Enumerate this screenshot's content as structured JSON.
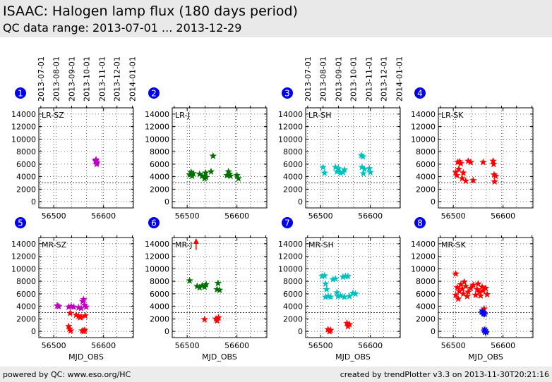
{
  "header": {
    "title": "ISAAC: Halogen lamp flux (180 days period)",
    "subtitle": "QC data range: 2013-07-01 ... 2013-12-29"
  },
  "footer": {
    "left": "powered by QC: www.eso.org/HC",
    "right": "created by trendPlotter v3.3 on 2013-11-30T20:21:16"
  },
  "colors": {
    "magenta": "#c000c0",
    "green": "#007000",
    "cyan": "#00c0c0",
    "red": "#ff0000",
    "blue": "#0000ff",
    "badge": "#0000ee"
  },
  "date_ticks": [
    "2013-07-01",
    "2013-08-01",
    "2013-09-01",
    "2013-10-01",
    "2013-11-01",
    "2013-12-01",
    "2014-01-01"
  ],
  "chart_data": [
    {
      "type": "scatter",
      "index": "1",
      "label": "LR-SZ",
      "xlabel": "",
      "xlim": [
        56470,
        56660
      ],
      "ylim": [
        -1000,
        15000
      ],
      "xticks": [
        56500,
        56600
      ],
      "yticks": [
        0,
        2000,
        4000,
        6000,
        8000,
        10000,
        12000,
        14000
      ],
      "threshold": 3000,
      "grid": true,
      "date_axis_top": true,
      "series": [
        {
          "color": "magenta",
          "marker": "star",
          "points": [
            [
              56585,
              6700
            ],
            [
              56585,
              6400
            ],
            [
              56587,
              6200
            ],
            [
              56586,
              6000
            ],
            [
              56584,
              6550
            ]
          ]
        }
      ]
    },
    {
      "type": "scatter",
      "index": "2",
      "label": "LR-J",
      "xlabel": "",
      "xlim": [
        56470,
        56660
      ],
      "ylim": [
        -1000,
        15000
      ],
      "xticks": [
        56500,
        56600
      ],
      "yticks": [
        0,
        2000,
        4000,
        6000,
        8000,
        10000,
        12000,
        14000
      ],
      "threshold": 3000,
      "grid": true,
      "date_axis_top": false,
      "series": [
        {
          "color": "green",
          "marker": "star",
          "points": [
            [
              56505,
              4300
            ],
            [
              56508,
              4700
            ],
            [
              56510,
              4100
            ],
            [
              56512,
              4500
            ],
            [
              56525,
              4400
            ],
            [
              56530,
              4100
            ],
            [
              56535,
              3700
            ],
            [
              56537,
              4600
            ],
            [
              56538,
              3900
            ],
            [
              56548,
              4800
            ],
            [
              56552,
              7300
            ],
            [
              56580,
              4200
            ],
            [
              56583,
              4800
            ],
            [
              56585,
              4400
            ],
            [
              56587,
              4100
            ],
            [
              56600,
              4200
            ],
            [
              56603,
              3700
            ]
          ]
        }
      ]
    },
    {
      "type": "scatter",
      "index": "3",
      "label": "LR-SH",
      "xlabel": "",
      "xlim": [
        56470,
        56660
      ],
      "ylim": [
        -1000,
        15000
      ],
      "xticks": [
        56500,
        56600
      ],
      "yticks": [
        0,
        2000,
        4000,
        6000,
        8000,
        10000,
        12000,
        14000
      ],
      "threshold": 3000,
      "grid": true,
      "date_axis_top": true,
      "series": [
        {
          "color": "cyan",
          "marker": "star",
          "points": [
            [
              56505,
              5500
            ],
            [
              56508,
              4600
            ],
            [
              56530,
              5500
            ],
            [
              56533,
              4800
            ],
            [
              56536,
              5300
            ],
            [
              56540,
              4600
            ],
            [
              56545,
              4700
            ],
            [
              56548,
              5100
            ],
            [
              56582,
              7400
            ],
            [
              56585,
              7200
            ],
            [
              56583,
              5500
            ],
            [
              56586,
              4500
            ],
            [
              56588,
              5200
            ],
            [
              56598,
              5300
            ],
            [
              56600,
              4700
            ]
          ]
        }
      ]
    },
    {
      "type": "scatter",
      "index": "4",
      "label": "LR-SK",
      "xlabel": "",
      "xlim": [
        56470,
        56660
      ],
      "ylim": [
        -1000,
        15000
      ],
      "xticks": [
        56500,
        56600
      ],
      "yticks": [
        0,
        2000,
        4000,
        6000,
        8000,
        10000,
        12000,
        14000
      ],
      "threshold": 3000,
      "grid": true,
      "date_axis_top": false,
      "series": [
        {
          "color": "red",
          "marker": "star",
          "points": [
            [
              56505,
              4700
            ],
            [
              56507,
              4200
            ],
            [
              56509,
              6300
            ],
            [
              56511,
              5200
            ],
            [
              56513,
              6400
            ],
            [
              56515,
              6100
            ],
            [
              56518,
              3700
            ],
            [
              56520,
              4600
            ],
            [
              56525,
              3300
            ],
            [
              56530,
              6500
            ],
            [
              56535,
              6300
            ],
            [
              56540,
              3400
            ],
            [
              56560,
              6300
            ],
            [
              56580,
              6500
            ],
            [
              56581,
              6000
            ],
            [
              56582,
              4300
            ],
            [
              56583,
              3200
            ],
            [
              56585,
              4100
            ]
          ]
        }
      ]
    },
    {
      "type": "scatter",
      "index": "5",
      "label": "MR-SZ",
      "xlabel": "MJD_OBS",
      "xlim": [
        56470,
        56660
      ],
      "ylim": [
        -1000,
        15000
      ],
      "xticks": [
        56500,
        56600
      ],
      "yticks": [
        0,
        2000,
        4000,
        6000,
        8000,
        10000,
        12000,
        14000
      ],
      "threshold": 3000,
      "grid": true,
      "date_axis_top": false,
      "series": [
        {
          "color": "magenta",
          "marker": "star",
          "points": [
            [
              56507,
              4100
            ],
            [
              56510,
              4000
            ],
            [
              56530,
              3900
            ],
            [
              56535,
              4000
            ],
            [
              56540,
              3900
            ],
            [
              56550,
              3800
            ],
            [
              56555,
              3700
            ],
            [
              56558,
              4800
            ],
            [
              56560,
              5100
            ],
            [
              56562,
              4200
            ],
            [
              56565,
              3900
            ]
          ]
        },
        {
          "color": "red",
          "marker": "star",
          "points": [
            [
              56530,
              800
            ],
            [
              56532,
              400
            ],
            [
              56534,
              100
            ],
            [
              56533,
              2900
            ],
            [
              56545,
              2600
            ],
            [
              56550,
              2400
            ],
            [
              56553,
              2200
            ],
            [
              56555,
              2300
            ],
            [
              56557,
              100
            ],
            [
              56560,
              0
            ],
            [
              56562,
              200
            ],
            [
              56563,
              2500
            ]
          ]
        }
      ]
    },
    {
      "type": "scatter",
      "index": "6",
      "label": "MR-J",
      "xlabel": "MJD_OBS",
      "xlim": [
        56470,
        56660
      ],
      "ylim": [
        -1000,
        15000
      ],
      "xticks": [
        56500,
        56600
      ],
      "yticks": [
        0,
        2000,
        4000,
        6000,
        8000,
        10000,
        12000,
        14000
      ],
      "threshold": 3000,
      "grid": true,
      "date_axis_top": false,
      "outlier": {
        "x": 56518,
        "y": 13000,
        "color": "red"
      },
      "series": [
        {
          "color": "green",
          "marker": "star",
          "points": [
            [
              56505,
              8100
            ],
            [
              56520,
              7200
            ],
            [
              56525,
              7000
            ],
            [
              56530,
              7300
            ],
            [
              56535,
              7100
            ],
            [
              56538,
              7500
            ],
            [
              56560,
              6700
            ],
            [
              56562,
              7700
            ],
            [
              56565,
              6600
            ]
          ]
        },
        {
          "color": "red",
          "marker": "star",
          "points": [
            [
              56535,
              1900
            ],
            [
              56558,
              2000
            ],
            [
              56560,
              1700
            ],
            [
              56563,
              2200
            ]
          ]
        }
      ]
    },
    {
      "type": "scatter",
      "index": "7",
      "label": "MR-SH",
      "xlabel": "MJD_OBS",
      "xlim": [
        56470,
        56660
      ],
      "ylim": [
        -1000,
        15000
      ],
      "xticks": [
        56500,
        56600
      ],
      "yticks": [
        0,
        2000,
        4000,
        6000,
        8000,
        10000,
        12000,
        14000
      ],
      "threshold": 3000,
      "grid": true,
      "date_axis_top": false,
      "series": [
        {
          "color": "cyan",
          "marker": "star",
          "points": [
            [
              56503,
              8800
            ],
            [
              56508,
              8900
            ],
            [
              56510,
              7600
            ],
            [
              56512,
              6700
            ],
            [
              56510,
              5500
            ],
            [
              56515,
              5600
            ],
            [
              56520,
              5500
            ],
            [
              56525,
              8300
            ],
            [
              56530,
              8400
            ],
            [
              56533,
              6200
            ],
            [
              56535,
              5600
            ],
            [
              56540,
              5700
            ],
            [
              56545,
              8700
            ],
            [
              56548,
              5500
            ],
            [
              56550,
              8800
            ],
            [
              56555,
              8800
            ],
            [
              56558,
              5600
            ],
            [
              56565,
              6100
            ],
            [
              56570,
              6000
            ]
          ]
        },
        {
          "color": "red",
          "marker": "star",
          "points": [
            [
              56515,
              300
            ],
            [
              56518,
              0
            ],
            [
              56520,
              200
            ],
            [
              56553,
              1300
            ],
            [
              56555,
              800
            ],
            [
              56558,
              1100
            ]
          ]
        }
      ]
    },
    {
      "type": "scatter",
      "index": "8",
      "label": "MR-SK",
      "xlabel": "MJD_OBS",
      "xlim": [
        56470,
        56660
      ],
      "ylim": [
        -1000,
        15000
      ],
      "xticks": [
        56500,
        56600
      ],
      "yticks": [
        0,
        2000,
        4000,
        6000,
        8000,
        10000,
        12000,
        14000
      ],
      "threshold": 3000,
      "grid": true,
      "date_axis_top": false,
      "series": [
        {
          "color": "red",
          "marker": "star",
          "points": [
            [
              56505,
              9200
            ],
            [
              56505,
              5800
            ],
            [
              56508,
              7000
            ],
            [
              56510,
              5200
            ],
            [
              56512,
              6400
            ],
            [
              56515,
              7500
            ],
            [
              56518,
              6800
            ],
            [
              56520,
              6000
            ],
            [
              56522,
              7900
            ],
            [
              56525,
              7200
            ],
            [
              56528,
              5600
            ],
            [
              56530,
              6300
            ],
            [
              56535,
              6900
            ],
            [
              56540,
              7400
            ],
            [
              56545,
              5800
            ],
            [
              56548,
              6700
            ],
            [
              56550,
              7600
            ],
            [
              56552,
              6300
            ],
            [
              56555,
              5700
            ],
            [
              56558,
              7100
            ],
            [
              56560,
              6500
            ],
            [
              56562,
              3600
            ],
            [
              56565,
              6900
            ],
            [
              56568,
              5900
            ]
          ]
        },
        {
          "color": "blue",
          "marker": "asterisk",
          "points": [
            [
              56558,
              3100
            ],
            [
              56562,
              2800
            ],
            [
              56563,
              200
            ],
            [
              56565,
              -100
            ]
          ]
        }
      ]
    }
  ]
}
